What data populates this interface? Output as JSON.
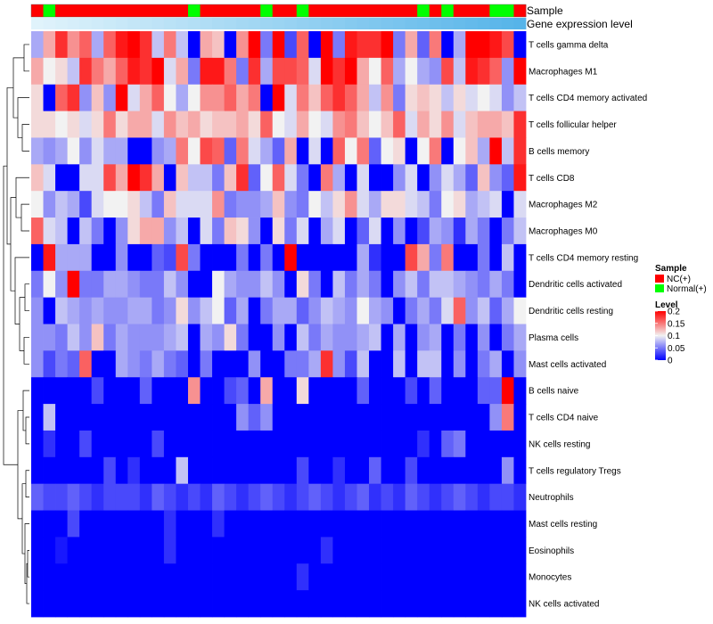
{
  "chart_data": {
    "type": "heatmap",
    "title": "",
    "annotation_labels": {
      "sample": "Sample",
      "expression": "Gene expression level"
    },
    "rows": [
      "T cells gamma delta",
      "Macrophages M1",
      "T cells CD4 memory activated",
      "T cells follicular helper",
      "B cells memory",
      "T cells CD8",
      "Macrophages M2",
      "Macrophages M0",
      "T cells CD4 memory resting",
      "Dendritic cells activated",
      "Dendritic cells resting",
      "Plasma cells",
      "Mast cells activated",
      "B cells naive",
      "T cells CD4 naive",
      "NK cells resting",
      "T cells regulatory  Tregs",
      "Neutrophils",
      "Mast cells resting",
      "Eosinophils",
      "Monocytes",
      "NK cells activated"
    ],
    "sample_groups": [
      "NC",
      "Normal",
      "NC",
      "NC",
      "NC",
      "NC",
      "NC",
      "NC",
      "NC",
      "NC",
      "NC",
      "NC",
      "NC",
      "Normal",
      "NC",
      "NC",
      "NC",
      "NC",
      "NC",
      "Normal",
      "NC",
      "NC",
      "Normal",
      "NC",
      "NC",
      "NC",
      "NC",
      "NC",
      "NC",
      "NC",
      "NC",
      "NC",
      "Normal",
      "NC",
      "Normal",
      "NC",
      "NC",
      "NC",
      "Normal",
      "Normal",
      "NC"
    ],
    "values": [
      [
        0.07,
        0.13,
        0.18,
        0.14,
        0.16,
        0.07,
        0.16,
        0.19,
        0.2,
        0.18,
        0.08,
        0.15,
        0.08,
        0.0,
        0.13,
        0.12,
        0.0,
        0.14,
        0.2,
        0.05,
        0.21,
        0.03,
        0.16,
        0.0,
        0.2,
        0.05,
        0.19,
        0.18,
        0.18,
        0.21,
        0.05,
        0.13,
        0.04,
        0.15,
        0.0,
        0.07,
        0.2,
        0.21,
        0.19,
        0.17,
        0.0
      ],
      [
        0.13,
        0.1,
        0.11,
        0.08,
        0.18,
        0.15,
        0.13,
        0.16,
        0.19,
        0.18,
        0.2,
        0.09,
        0.13,
        0.05,
        0.19,
        0.19,
        0.15,
        0.05,
        0.18,
        0.07,
        0.17,
        0.17,
        0.16,
        0.09,
        0.21,
        0.18,
        0.2,
        0.13,
        0.1,
        0.16,
        0.07,
        0.1,
        0.07,
        0.06,
        0.17,
        0.08,
        0.19,
        0.18,
        0.16,
        0.06,
        0.21
      ],
      [
        0.11,
        0.0,
        0.16,
        0.18,
        0.06,
        0.12,
        0.06,
        0.21,
        0.09,
        0.13,
        0.16,
        0.1,
        0.07,
        0.1,
        0.14,
        0.14,
        0.16,
        0.13,
        0.15,
        0.0,
        0.2,
        0.09,
        0.15,
        0.12,
        0.16,
        0.18,
        0.16,
        0.13,
        0.08,
        0.14,
        0.05,
        0.11,
        0.12,
        0.11,
        0.08,
        0.11,
        0.09,
        0.1,
        0.09,
        0.06,
        0.08
      ],
      [
        0.11,
        0.11,
        0.1,
        0.11,
        0.09,
        0.11,
        0.15,
        0.11,
        0.13,
        0.13,
        0.09,
        0.14,
        0.12,
        0.13,
        0.11,
        0.12,
        0.12,
        0.13,
        0.11,
        0.16,
        0.1,
        0.09,
        0.13,
        0.1,
        0.09,
        0.14,
        0.15,
        0.12,
        0.1,
        0.12,
        0.16,
        0.09,
        0.13,
        0.11,
        0.14,
        0.09,
        0.12,
        0.13,
        0.13,
        0.12,
        0.18
      ],
      [
        0.07,
        0.06,
        0.07,
        0.1,
        0.06,
        0.09,
        0.07,
        0.07,
        0.0,
        0.0,
        0.06,
        0.07,
        0.15,
        0.1,
        0.17,
        0.16,
        0.04,
        0.15,
        0.09,
        0.07,
        0.04,
        0.13,
        0.0,
        0.09,
        0.0,
        0.16,
        0.1,
        0.15,
        0.04,
        0.1,
        0.11,
        0.0,
        0.1,
        0.15,
        0.0,
        0.1,
        0.12,
        0.07,
        0.21,
        0.08,
        0.18
      ],
      [
        0.12,
        0.09,
        0.0,
        0.0,
        0.09,
        0.09,
        0.17,
        0.13,
        0.21,
        0.18,
        0.13,
        0.0,
        0.12,
        0.08,
        0.08,
        0.05,
        0.12,
        0.18,
        0.04,
        0.1,
        0.16,
        0.09,
        0.05,
        0.0,
        0.15,
        0.07,
        0.0,
        0.09,
        0.0,
        0.0,
        0.06,
        0.09,
        0.0,
        0.06,
        0.09,
        0.07,
        0.04,
        0.12,
        0.06,
        0.04,
        0.19
      ],
      [
        0.1,
        0.06,
        0.08,
        0.07,
        0.03,
        0.09,
        0.1,
        0.1,
        0.11,
        0.08,
        0.05,
        0.12,
        0.09,
        0.09,
        0.09,
        0.14,
        0.05,
        0.06,
        0.06,
        0.07,
        0.12,
        0.06,
        0.05,
        0.1,
        0.08,
        0.11,
        0.14,
        0.09,
        0.07,
        0.11,
        0.11,
        0.09,
        0.08,
        0.05,
        0.1,
        0.11,
        0.07,
        0.08,
        0.09,
        0.0,
        0.09
      ],
      [
        0.16,
        0.09,
        0.08,
        0.0,
        0.08,
        0.05,
        0.0,
        0.06,
        0.11,
        0.13,
        0.13,
        0.06,
        0.08,
        0.0,
        0.09,
        0.05,
        0.12,
        0.11,
        0.06,
        0.0,
        0.11,
        0.05,
        0.09,
        0.0,
        0.07,
        0.09,
        0.0,
        0.04,
        0.09,
        0.0,
        0.06,
        0.0,
        0.03,
        0.07,
        0.06,
        0.02,
        0.07,
        0.05,
        0.0,
        0.05,
        0.08
      ],
      [
        0.0,
        0.19,
        0.07,
        0.07,
        0.07,
        0.0,
        0.0,
        0.06,
        0.0,
        0.0,
        0.04,
        0.03,
        0.17,
        0.05,
        0.0,
        0.0,
        0.0,
        0.05,
        0.0,
        0.05,
        0.0,
        0.21,
        0.0,
        0.0,
        0.0,
        0.0,
        0.0,
        0.07,
        0.02,
        0.0,
        0.0,
        0.17,
        0.13,
        0.05,
        0.15,
        0.0,
        0.0,
        0.05,
        0.0,
        0.08,
        0.0
      ],
      [
        0.05,
        0.1,
        0.06,
        0.21,
        0.05,
        0.05,
        0.07,
        0.07,
        0.06,
        0.05,
        0.05,
        0.08,
        0.06,
        0.0,
        0.0,
        0.1,
        0.07,
        0.06,
        0.06,
        0.08,
        0.06,
        0.0,
        0.11,
        0.05,
        0.0,
        0.08,
        0.05,
        0.07,
        0.05,
        0.0,
        0.06,
        0.08,
        0.05,
        0.08,
        0.08,
        0.07,
        0.06,
        0.05,
        0.07,
        0.05,
        0.0
      ],
      [
        0.06,
        0.0,
        0.08,
        0.07,
        0.06,
        0.07,
        0.06,
        0.06,
        0.07,
        0.07,
        0.05,
        0.06,
        0.11,
        0.06,
        0.08,
        0.1,
        0.04,
        0.07,
        0.0,
        0.05,
        0.07,
        0.07,
        0.04,
        0.06,
        0.08,
        0.07,
        0.06,
        0.1,
        0.07,
        0.06,
        0.0,
        0.05,
        0.07,
        0.05,
        0.09,
        0.16,
        0.06,
        0.08,
        0.04,
        0.07,
        0.1
      ],
      [
        0.06,
        0.06,
        0.05,
        0.08,
        0.06,
        0.12,
        0.05,
        0.07,
        0.06,
        0.06,
        0.06,
        0.07,
        0.08,
        0.0,
        0.07,
        0.06,
        0.11,
        0.05,
        0.0,
        0.0,
        0.06,
        0.0,
        0.08,
        0.05,
        0.07,
        0.06,
        0.06,
        0.07,
        0.08,
        0.0,
        0.07,
        0.0,
        0.06,
        0.07,
        0.0,
        0.05,
        0.0,
        0.06,
        0.0,
        0.05,
        0.07
      ],
      [
        0.06,
        0.03,
        0.05,
        0.04,
        0.16,
        0.0,
        0.0,
        0.07,
        0.06,
        0.05,
        0.07,
        0.05,
        0.04,
        0.0,
        0.05,
        0.0,
        0.0,
        0.0,
        0.06,
        0.0,
        0.0,
        0.05,
        0.05,
        0.07,
        0.18,
        0.06,
        0.03,
        0.08,
        0.0,
        0.0,
        0.08,
        0.0,
        0.08,
        0.08,
        0.0,
        0.06,
        0.0,
        0.05,
        0.07,
        0.0,
        0.06
      ],
      [
        0.0,
        0.0,
        0.0,
        0.0,
        0.0,
        0.03,
        0.0,
        0.0,
        0.0,
        0.04,
        0.0,
        0.0,
        0.0,
        0.14,
        0.0,
        0.0,
        0.03,
        0.04,
        0.0,
        0.13,
        0.0,
        0.0,
        0.11,
        0.0,
        0.0,
        0.0,
        0.0,
        0.04,
        0.0,
        0.0,
        0.0,
        0.03,
        0.0,
        0.04,
        0.0,
        0.0,
        0.0,
        0.04,
        0.04,
        0.21,
        0.0
      ],
      [
        0.0,
        0.08,
        0.0,
        0.0,
        0.0,
        0.0,
        0.0,
        0.0,
        0.0,
        0.0,
        0.0,
        0.0,
        0.0,
        0.0,
        0.0,
        0.0,
        0.0,
        0.06,
        0.04,
        0.06,
        0.0,
        0.0,
        0.0,
        0.0,
        0.0,
        0.0,
        0.0,
        0.0,
        0.0,
        0.0,
        0.0,
        0.0,
        0.0,
        0.0,
        0.0,
        0.0,
        0.0,
        0.0,
        0.06,
        0.15,
        0.0
      ],
      [
        0.0,
        0.02,
        0.0,
        0.0,
        0.03,
        0.0,
        0.0,
        0.0,
        0.0,
        0.0,
        0.03,
        0.0,
        0.0,
        0.0,
        0.0,
        0.0,
        0.0,
        0.0,
        0.0,
        0.0,
        0.0,
        0.0,
        0.0,
        0.0,
        0.0,
        0.0,
        0.0,
        0.0,
        0.0,
        0.0,
        0.0,
        0.0,
        0.02,
        0.0,
        0.04,
        0.05,
        0.0,
        0.0,
        0.0,
        0.0,
        0.0
      ],
      [
        0.0,
        0.0,
        0.0,
        0.0,
        0.0,
        0.0,
        0.03,
        0.0,
        0.02,
        0.0,
        0.0,
        0.0,
        0.08,
        0.0,
        0.0,
        0.0,
        0.0,
        0.0,
        0.0,
        0.0,
        0.0,
        0.0,
        0.03,
        0.0,
        0.0,
        0.02,
        0.0,
        0.0,
        0.04,
        0.0,
        0.0,
        0.03,
        0.0,
        0.0,
        0.0,
        0.0,
        0.0,
        0.0,
        0.0,
        0.06,
        0.0
      ],
      [
        0.04,
        0.03,
        0.03,
        0.04,
        0.03,
        0.02,
        0.03,
        0.03,
        0.03,
        0.02,
        0.04,
        0.03,
        0.02,
        0.03,
        0.02,
        0.04,
        0.03,
        0.02,
        0.03,
        0.04,
        0.03,
        0.02,
        0.03,
        0.04,
        0.03,
        0.02,
        0.03,
        0.04,
        0.02,
        0.03,
        0.02,
        0.04,
        0.03,
        0.02,
        0.03,
        0.04,
        0.03,
        0.02,
        0.03,
        0.03,
        0.02
      ],
      [
        0.0,
        0.0,
        0.0,
        0.03,
        0.0,
        0.0,
        0.0,
        0.0,
        0.0,
        0.0,
        0.0,
        0.02,
        0.0,
        0.0,
        0.0,
        0.02,
        0.0,
        0.0,
        0.0,
        0.0,
        0.0,
        0.0,
        0.0,
        0.0,
        0.0,
        0.0,
        0.0,
        0.0,
        0.0,
        0.0,
        0.0,
        0.0,
        0.0,
        0.0,
        0.0,
        0.0,
        0.0,
        0.0,
        0.0,
        0.0,
        0.0
      ],
      [
        0.0,
        0.0,
        0.01,
        0.0,
        0.0,
        0.0,
        0.0,
        0.0,
        0.0,
        0.0,
        0.0,
        0.02,
        0.0,
        0.0,
        0.0,
        0.0,
        0.0,
        0.0,
        0.0,
        0.0,
        0.0,
        0.0,
        0.0,
        0.0,
        0.02,
        0.0,
        0.0,
        0.0,
        0.0,
        0.0,
        0.0,
        0.0,
        0.0,
        0.0,
        0.0,
        0.0,
        0.0,
        0.0,
        0.0,
        0.0,
        0.0
      ],
      [
        0.0,
        0.0,
        0.0,
        0.0,
        0.0,
        0.0,
        0.0,
        0.0,
        0.0,
        0.0,
        0.0,
        0.0,
        0.0,
        0.0,
        0.0,
        0.0,
        0.0,
        0.0,
        0.0,
        0.0,
        0.0,
        0.0,
        0.02,
        0.0,
        0.0,
        0.0,
        0.0,
        0.0,
        0.0,
        0.0,
        0.0,
        0.0,
        0.0,
        0.0,
        0.0,
        0.0,
        0.0,
        0.0,
        0.0,
        0.0,
        0.0
      ],
      [
        0.0,
        0.0,
        0.0,
        0.0,
        0.0,
        0.0,
        0.0,
        0.0,
        0.0,
        0.0,
        0.0,
        0.0,
        0.0,
        0.0,
        0.0,
        0.0,
        0.0,
        0.0,
        0.0,
        0.0,
        0.0,
        0.0,
        0.0,
        0.0,
        0.0,
        0.0,
        0.0,
        0.0,
        0.0,
        0.0,
        0.0,
        0.0,
        0.0,
        0.0,
        0.0,
        0.0,
        0.0,
        0.0,
        0.0,
        0.0,
        0.0
      ]
    ],
    "color_scale": {
      "low_value": 0,
      "mid_value": 0.1,
      "high_value": 0.2,
      "low": "#0000ff",
      "mid": "#f2f2f2",
      "high": "#ff0000"
    },
    "legend": {
      "sample_title": "Sample",
      "sample_items": [
        {
          "label": "NC(+)",
          "color": "#ff0000"
        },
        {
          "label": "Normal(+)",
          "color": "#00ff00"
        }
      ],
      "level_title": "Level",
      "level_ticks": [
        "0.2",
        "0.15",
        "0.1",
        "0.05",
        "0"
      ],
      "level_tick_values": [
        0.2,
        0.15,
        0.1,
        0.05,
        0
      ]
    },
    "expression_colors": {
      "start": "#e0f3fb",
      "end": "#56b4e9"
    },
    "dendrogram": "row clustering tree (left)"
  }
}
